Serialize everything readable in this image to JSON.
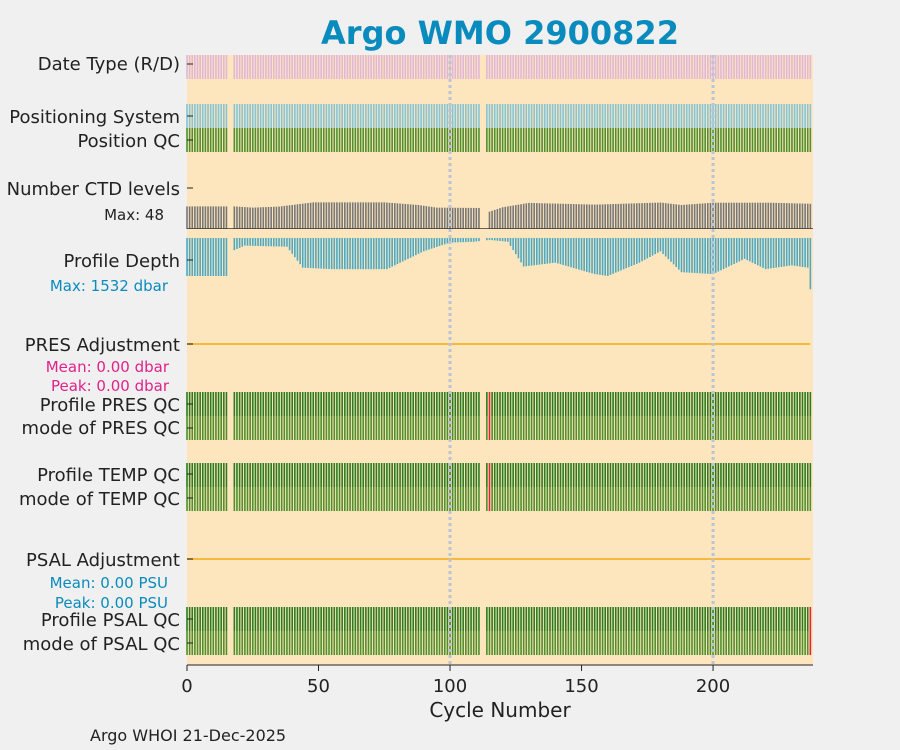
{
  "title": "Argo WMO 2900822",
  "footer": "Argo WHOI 21-Dec-2025",
  "colors": {
    "background": "#f0f0f0",
    "plot_bg": "#fde6bd",
    "title": "#0a8bbd",
    "text": "#222222",
    "date_type": "#e0b7d8",
    "positioning": "#86c4d6",
    "qc_good": "#4f8f2d",
    "qc_profile_a": "#2c7a1f",
    "ctd": "#777777",
    "depth": "#4ea9c4",
    "adjustment_line": "#f5b942",
    "pres_stats": "#e0228a",
    "psal_stats": "#0a8bbd",
    "bad_flag": "#e8203a",
    "ref_line": "#b9c4d6"
  },
  "chart_data": {
    "type": "bar",
    "xlabel": "Cycle Number",
    "xlim": [
      0,
      238
    ],
    "xticks": [
      0,
      50,
      100,
      150,
      200
    ],
    "gap_cycles": [
      16,
      17,
      112,
      113
    ],
    "reference_cycles": [
      100,
      200
    ],
    "ctd_max": 48,
    "depth_max": 1532,
    "ctd_low_anchors": [
      [
        18,
        0.75
      ],
      [
        25,
        0.68
      ],
      [
        35,
        0.74
      ],
      [
        48,
        0.98
      ],
      [
        75,
        0.98
      ],
      [
        88,
        0.83
      ],
      [
        95,
        0.68
      ],
      [
        111,
        0.66
      ],
      [
        115,
        0.45
      ],
      [
        120,
        0.7
      ],
      [
        130,
        0.95
      ],
      [
        155,
        0.85
      ],
      [
        180,
        0.97
      ],
      [
        188,
        0.83
      ],
      [
        200,
        0.96
      ],
      [
        222,
        0.96
      ],
      [
        237,
        0.9
      ]
    ],
    "depth_anchors": [
      [
        0,
        1.0
      ],
      [
        15,
        1.0
      ],
      [
        18,
        0.32
      ],
      [
        22,
        0.2
      ],
      [
        38,
        0.23
      ],
      [
        44,
        0.78
      ],
      [
        55,
        0.82
      ],
      [
        76,
        0.82
      ],
      [
        90,
        0.35
      ],
      [
        100,
        0.12
      ],
      [
        109,
        0.1
      ],
      [
        115,
        0.05
      ],
      [
        122,
        0.1
      ],
      [
        128,
        0.75
      ],
      [
        140,
        0.65
      ],
      [
        155,
        0.95
      ],
      [
        160,
        1.0
      ],
      [
        172,
        0.65
      ],
      [
        180,
        0.35
      ],
      [
        188,
        0.9
      ],
      [
        200,
        0.95
      ],
      [
        212,
        0.55
      ],
      [
        220,
        0.82
      ],
      [
        230,
        0.72
      ],
      [
        236,
        0.78
      ],
      [
        237,
        1.35
      ]
    ],
    "pres_bad_cycles": [
      115
    ],
    "temp_bad_cycles": [
      115
    ],
    "psal_bad_cycles": [
      237
    ],
    "rows": [
      {
        "key": "date_type",
        "label": "Date Type (R/D)"
      },
      {
        "key": "positioning",
        "label": "Positioning System"
      },
      {
        "key": "position_qc",
        "label": "Position QC"
      },
      {
        "key": "ctd",
        "label": "Number CTD levels",
        "stat": "Max: 48"
      },
      {
        "key": "depth",
        "label": "Profile Depth",
        "stat": "Max: 1532 dbar"
      },
      {
        "key": "pres_adj",
        "label": "PRES Adjustment",
        "stat1": "Mean: 0.00 dbar",
        "stat2": "Peak: 0.00 dbar"
      },
      {
        "key": "pres_qc",
        "label": "Profile PRES QC"
      },
      {
        "key": "pres_mode",
        "label": "mode of PRES QC"
      },
      {
        "key": "temp_qc",
        "label": "Profile TEMP QC"
      },
      {
        "key": "temp_mode",
        "label": "mode of TEMP QC"
      },
      {
        "key": "psal_adj",
        "label": "PSAL Adjustment",
        "stat1": "Mean: 0.00 PSU",
        "stat2": "Peak: 0.00 PSU"
      },
      {
        "key": "psal_qc",
        "label": "Profile PSAL QC"
      },
      {
        "key": "psal_mode",
        "label": "mode of PSAL QC"
      }
    ]
  }
}
